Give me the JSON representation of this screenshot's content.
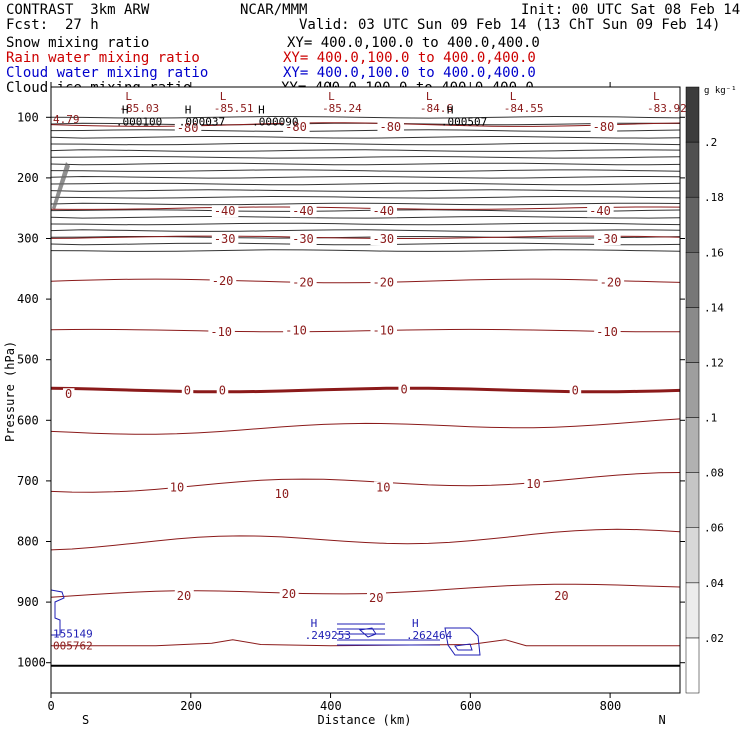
{
  "header": {
    "model": "CONTRAST  3km ARW",
    "org": "NCAR/MMM",
    "init": "Init: 00 UTC Sat 08 Feb 14",
    "fcst_label": "Fcst:",
    "fcst_value": "27 h",
    "valid": "Valid: 03 UTC Sun 09 Feb 14 (13 ChT Sun 09 Feb 14)",
    "fields": [
      {
        "name": "Snow mixing ratio",
        "xy": "XY= 400.0,100.0 to 400.0,400.0",
        "color": "#000000"
      },
      {
        "name": "Rain water mixing ratio",
        "xy": "XY= 400.0,100.0 to 400.0,400.0",
        "color": "#cc0000"
      },
      {
        "name": "Cloud water mixing ratio",
        "xy": "XY= 400.0,100.0 to 400.0,400.0",
        "color": "#0000cc"
      },
      {
        "name": "Cloud ice mixing ratio",
        "xy": "XY= 400.0,100.0 to 400.0,400.0",
        "color": "#000000"
      }
    ]
  },
  "colors": {
    "temp": "#8b1a1a",
    "cloud": "#1f1fb4",
    "axis": "#000000",
    "fill_max": "#3c3c3c"
  },
  "chart_data": {
    "type": "contour_cross_section",
    "xlabel": "Distance (km)",
    "ylabel": "Pressure (hPa)",
    "xlim": [
      0,
      900
    ],
    "ylim": [
      1050,
      50
    ],
    "x_ticks": [
      0,
      200,
      400,
      600,
      800
    ],
    "y_ticks": [
      100,
      200,
      300,
      400,
      500,
      600,
      700,
      800,
      900,
      1000
    ],
    "end_labels": {
      "left": "S",
      "right": "N"
    },
    "colorbar": {
      "unit": "g kg⁻¹",
      "levels": [
        0.02,
        0.04,
        0.06,
        0.08,
        0.1,
        0.12,
        0.14,
        0.16,
        0.18,
        0.2
      ],
      "labels": [
        ".02",
        ".04",
        ".06",
        ".08",
        ".1",
        ".12",
        ".14",
        ".16",
        ".18",
        ".2"
      ]
    },
    "isotherm_labels": [
      {
        "text": "-80",
        "x": 180,
        "p": 118
      },
      {
        "text": "-80",
        "x": 335,
        "p": 116
      },
      {
        "text": "-80",
        "x": 470,
        "p": 116
      },
      {
        "text": "-80",
        "x": 775,
        "p": 116
      },
      {
        "text": "-40",
        "x": 233,
        "p": 255
      },
      {
        "text": "-40",
        "x": 345,
        "p": 255
      },
      {
        "text": "-40",
        "x": 460,
        "p": 255
      },
      {
        "text": "-40",
        "x": 770,
        "p": 255
      },
      {
        "text": "-30",
        "x": 233,
        "p": 301
      },
      {
        "text": "-30",
        "x": 345,
        "p": 301
      },
      {
        "text": "-30",
        "x": 460,
        "p": 301
      },
      {
        "text": "-30",
        "x": 780,
        "p": 301
      },
      {
        "text": "-20",
        "x": 230,
        "p": 370
      },
      {
        "text": "-20",
        "x": 345,
        "p": 373
      },
      {
        "text": "-20",
        "x": 460,
        "p": 373
      },
      {
        "text": "-20",
        "x": 785,
        "p": 373
      },
      {
        "text": "-10",
        "x": 228,
        "p": 454
      },
      {
        "text": "-10",
        "x": 335,
        "p": 452
      },
      {
        "text": "-10",
        "x": 460,
        "p": 452
      },
      {
        "text": "-10",
        "x": 780,
        "p": 454
      },
      {
        "text": "0",
        "x": 20,
        "p": 557
      },
      {
        "text": "0",
        "x": 190,
        "p": 551
      },
      {
        "text": "0",
        "x": 240,
        "p": 551
      },
      {
        "text": "0",
        "x": 500,
        "p": 549
      },
      {
        "text": "0",
        "x": 745,
        "p": 551
      },
      {
        "text": "10",
        "x": 170,
        "p": 711
      },
      {
        "text": "10",
        "x": 320,
        "p": 722
      },
      {
        "text": "10",
        "x": 465,
        "p": 711
      },
      {
        "text": "10",
        "x": 680,
        "p": 705
      },
      {
        "text": "20",
        "x": 180,
        "p": 890
      },
      {
        "text": "20",
        "x": 330,
        "p": 887
      },
      {
        "text": "20",
        "x": 455,
        "p": 893
      },
      {
        "text": "20",
        "x": 720,
        "p": 890
      }
    ],
    "extrema": [
      {
        "kind": "L",
        "value": "-85.03",
        "x": 95,
        "p": 88
      },
      {
        "kind": "L",
        "value": "-85.51",
        "x": 230,
        "p": 88
      },
      {
        "kind": "L",
        "value": "-85.24",
        "x": 385,
        "p": 88
      },
      {
        "kind": "L",
        "value": "-84.6",
        "x": 525,
        "p": 88
      },
      {
        "kind": "L",
        "value": "-84.55",
        "x": 645,
        "p": 88
      },
      {
        "kind": "L",
        "value": "-83.92",
        "x": 850,
        "p": 88
      },
      {
        "kind": "",
        "value": "4.79",
        "x": 0,
        "p": 106
      },
      {
        "kind": "H",
        "value": ".000100",
        "x": 90,
        "p": 110
      },
      {
        "kind": "H",
        "value": ".000037",
        "x": 180,
        "p": 110
      },
      {
        "kind": "H",
        "value": ".000090",
        "x": 285,
        "p": 110
      },
      {
        "kind": "H",
        "value": ".000507",
        "x": 555,
        "p": 110
      },
      {
        "kind": "",
        "value": "155149",
        "x": 0,
        "p": 955
      },
      {
        "kind": "",
        "value": "005762",
        "x": 0,
        "p": 975
      },
      {
        "kind": "H",
        "value": ".249253",
        "x": 360,
        "p": 958
      },
      {
        "kind": "H",
        "value": ".262464",
        "x": 505,
        "p": 958
      }
    ]
  }
}
